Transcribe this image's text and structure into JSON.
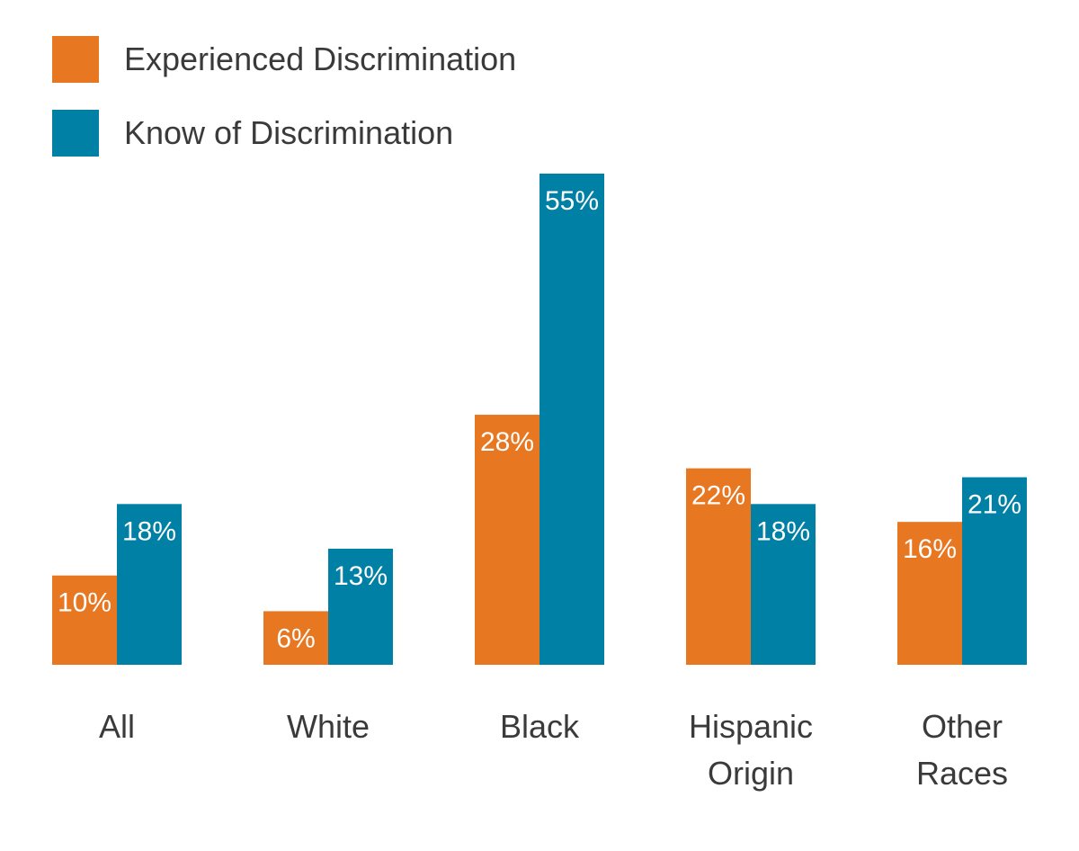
{
  "chart_data": {
    "type": "bar",
    "categories": [
      [
        "All"
      ],
      [
        "White"
      ],
      [
        "Black"
      ],
      [
        "Hispanic",
        "Origin"
      ],
      [
        "Other",
        "Races"
      ]
    ],
    "series": [
      {
        "name": "Experienced Discrimination",
        "color": "#E87722",
        "values": [
          10,
          6,
          28,
          22,
          16
        ],
        "labels": [
          "10%",
          "6%",
          "28%",
          "22%",
          "16%"
        ]
      },
      {
        "name": "Know of Discrimination",
        "color": "#0080A5",
        "values": [
          18,
          13,
          55,
          18,
          21
        ],
        "labels": [
          "18%",
          "13%",
          "55%",
          "18%",
          "21%"
        ]
      }
    ],
    "legend_position": "top-left",
    "grid": false,
    "axes_visible": false,
    "ylim": [
      0,
      55
    ]
  }
}
